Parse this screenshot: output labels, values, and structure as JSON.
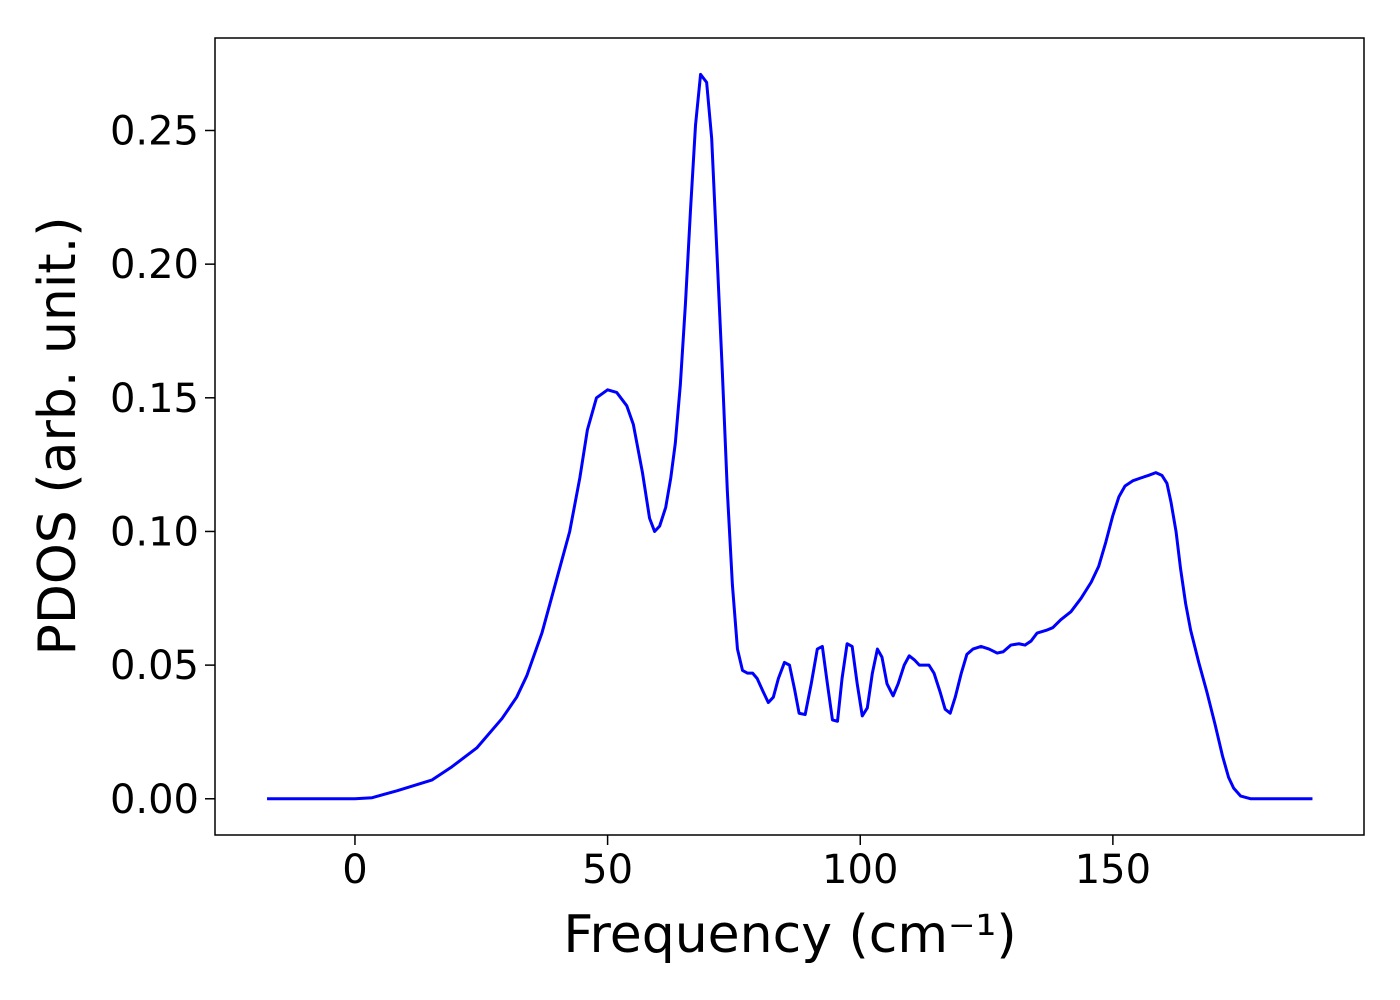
{
  "chart_data": {
    "type": "line",
    "xlabel": "Frequency (cm⁻¹)",
    "ylabel": "PDOS (arb. unit.)",
    "xlim": [
      -27.7,
      199.7
    ],
    "ylim": [
      -0.01355,
      0.2846
    ],
    "xticks": [
      0,
      50,
      100,
      150
    ],
    "yticks": [
      {
        "value": 0,
        "label": "0.00"
      },
      {
        "value": 0.05,
        "label": "0.05"
      },
      {
        "value": 0.1,
        "label": "0.10"
      },
      {
        "value": 0.15,
        "label": "0.15"
      },
      {
        "value": 0.2,
        "label": "0.20"
      },
      {
        "value": 0.25,
        "label": "0.25"
      }
    ],
    "grid": false,
    "x": [
      -17.4,
      0,
      3.4,
      8.3,
      15.2,
      19.2,
      24.1,
      29.1,
      32.0,
      34.0,
      37.0,
      39.9,
      42.5,
      44.5,
      46.0,
      47.8,
      50.0,
      51.8,
      53.8,
      55.1,
      56.9,
      58.3,
      59.3,
      60.3,
      61.5,
      62.5,
      63.4,
      64.4,
      65.4,
      66.4,
      67.4,
      68.4,
      69.6,
      70.6,
      71.5,
      72.7,
      73.7,
      74.7,
      75.7,
      76.7,
      77.7,
      78.7,
      79.6,
      80.8,
      81.8,
      82.8,
      83.8,
      85.0,
      86.0,
      87.0,
      87.9,
      89.1,
      90.3,
      91.5,
      92.5,
      93.5,
      94.5,
      95.5,
      96.4,
      97.4,
      98.4,
      99.4,
      100.4,
      101.4,
      102.4,
      103.4,
      104.3,
      105.3,
      106.5,
      107.5,
      108.7,
      109.7,
      110.7,
      111.7,
      112.6,
      113.6,
      114.6,
      115.8,
      116.8,
      117.8,
      118.8,
      120.0,
      121.1,
      122.3,
      123.9,
      125.5,
      127.1,
      128.3,
      129.8,
      131.4,
      132.6,
      133.8,
      135.0,
      136.8,
      138.1,
      139.7,
      141.7,
      143.7,
      145.7,
      147.2,
      148.6,
      150.0,
      151.2,
      152.4,
      154.0,
      155.5,
      157.1,
      158.5,
      159.7,
      160.7,
      161.5,
      162.5,
      163.4,
      164.4,
      165.4,
      167.0,
      168.6,
      170.2,
      171.7,
      172.9,
      173.9,
      175.3,
      177.3,
      189.5
    ],
    "series": [
      {
        "color": "#0000ff",
        "values": [
          0,
          0,
          0.0004,
          0.003,
          0.007,
          0.012,
          0.019,
          0.03,
          0.038,
          0.046,
          0.062,
          0.082,
          0.1,
          0.12,
          0.138,
          0.15,
          0.153,
          0.152,
          0.147,
          0.14,
          0.122,
          0.105,
          0.1,
          0.102,
          0.109,
          0.12,
          0.133,
          0.155,
          0.185,
          0.22,
          0.252,
          0.271,
          0.268,
          0.247,
          0.21,
          0.16,
          0.115,
          0.08,
          0.056,
          0.048,
          0.047,
          0.047,
          0.045,
          0.04,
          0.036,
          0.038,
          0.045,
          0.051,
          0.05,
          0.041,
          0.032,
          0.0315,
          0.043,
          0.056,
          0.057,
          0.043,
          0.0295,
          0.029,
          0.045,
          0.058,
          0.057,
          0.043,
          0.031,
          0.034,
          0.047,
          0.056,
          0.053,
          0.043,
          0.0385,
          0.043,
          0.05,
          0.0535,
          0.052,
          0.05,
          0.05,
          0.05,
          0.047,
          0.04,
          0.0335,
          0.032,
          0.038,
          0.047,
          0.054,
          0.056,
          0.057,
          0.056,
          0.0545,
          0.055,
          0.0575,
          0.058,
          0.0575,
          0.059,
          0.062,
          0.063,
          0.064,
          0.067,
          0.07,
          0.075,
          0.081,
          0.087,
          0.096,
          0.106,
          0.113,
          0.117,
          0.119,
          0.12,
          0.121,
          0.122,
          0.121,
          0.118,
          0.111,
          0.1,
          0.086,
          0.073,
          0.063,
          0.051,
          0.04,
          0.028,
          0.016,
          0.008,
          0.004,
          0.001,
          0,
          0
        ]
      }
    ]
  }
}
